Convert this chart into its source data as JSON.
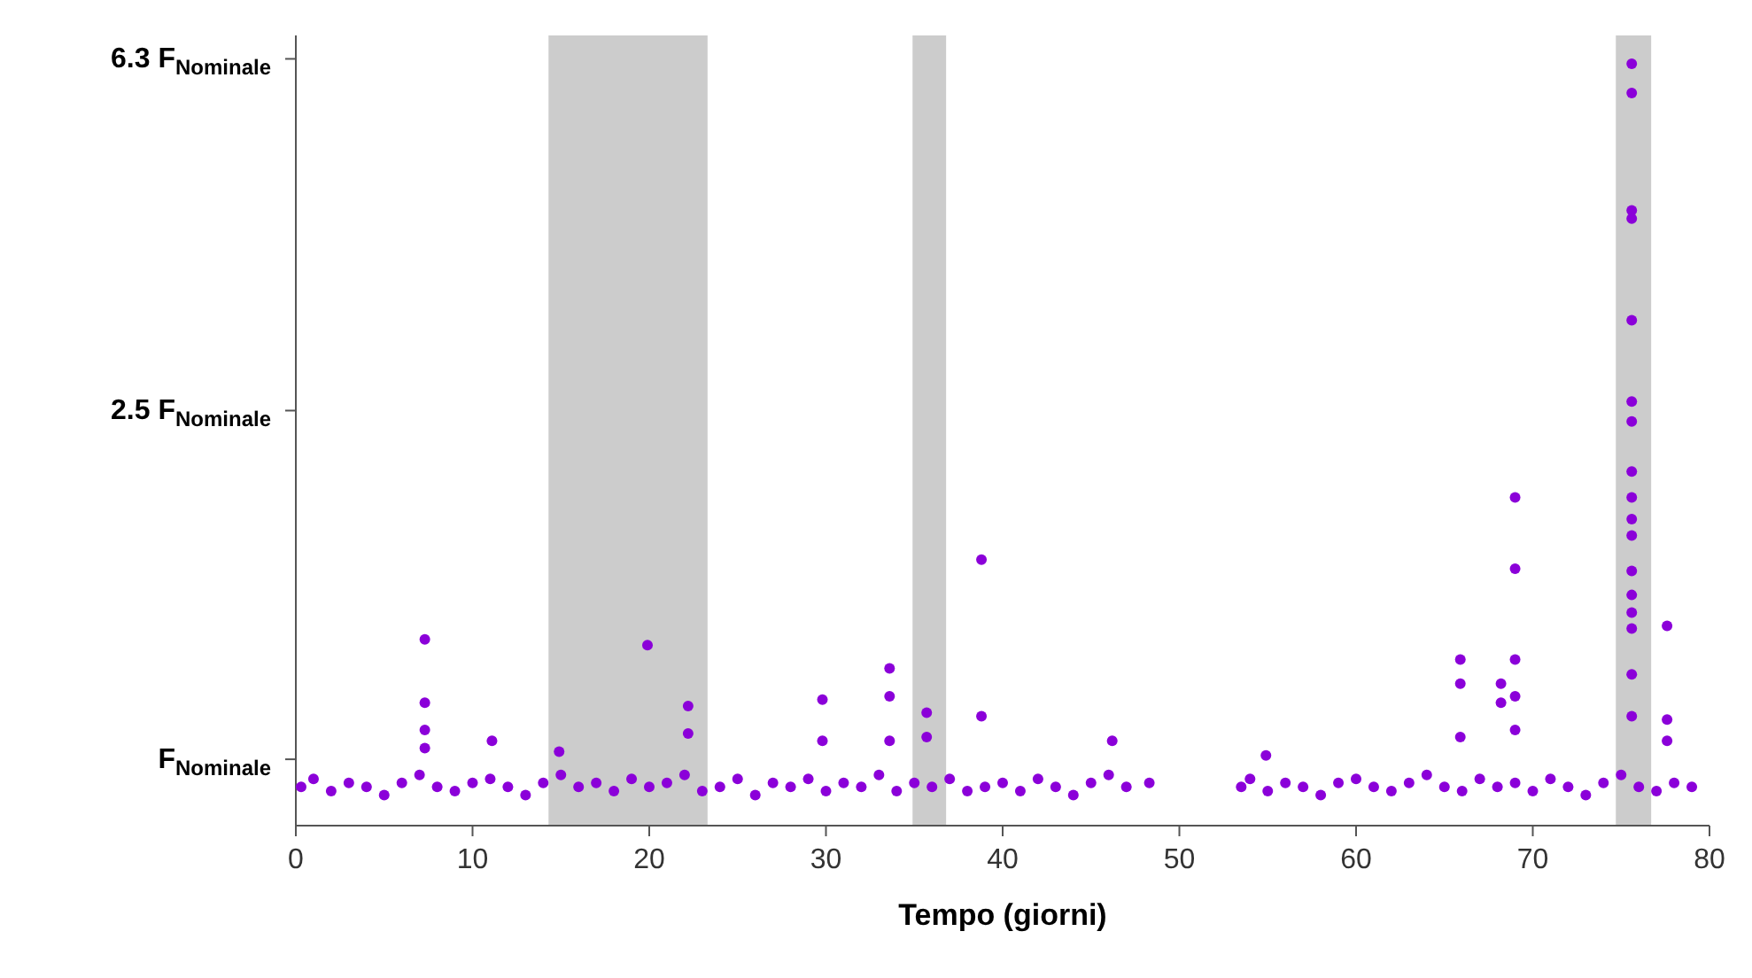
{
  "chart_data": {
    "type": "scatter",
    "xlabel": "Tempo (giorni)",
    "xlim": [
      0,
      80
    ],
    "xticks": [
      0,
      10,
      20,
      30,
      40,
      50,
      60,
      70,
      80
    ],
    "ylim": [
      0.84,
      6.7
    ],
    "yticks": [
      {
        "value": 1,
        "label": "F$_{Nominale}$"
      },
      {
        "value": 2.5,
        "label": "2.5 F$_{Nominale}$"
      },
      {
        "value": 6.3,
        "label": "6.3 F$_{Nominale}$"
      }
    ],
    "log": "y",
    "grid": false,
    "legend": false,
    "marker": "circle",
    "bands": [
      {
        "axis": "x",
        "from": 14.3,
        "to": 23.3,
        "color": "#cccccc"
      },
      {
        "axis": "x",
        "from": 34.9,
        "to": 36.8,
        "color": "#cccccc"
      },
      {
        "axis": "x",
        "from": 74.7,
        "to": 76.7,
        "color": "#cccccc"
      }
    ],
    "series": [
      {
        "color": "#8b00d9",
        "x": [
          0.3,
          1,
          2,
          3,
          4,
          5,
          6,
          7,
          8,
          9,
          10,
          11,
          12,
          13,
          14,
          15,
          16,
          17,
          18,
          19,
          20,
          21,
          22,
          23,
          24,
          25,
          26,
          27,
          28,
          29,
          30,
          31,
          32,
          33,
          34,
          35,
          36,
          37,
          38,
          39,
          40,
          41,
          42,
          43,
          44,
          45,
          46,
          47,
          48.3,
          53.5,
          54,
          55,
          56,
          57,
          58,
          59,
          60,
          61,
          62,
          63,
          64,
          65,
          66,
          67,
          68,
          69,
          70,
          71,
          72,
          73,
          74,
          75,
          76,
          77,
          78,
          79,
          7.3,
          7.3,
          7.3,
          7.3,
          11.1,
          14.9,
          19.9,
          22.2,
          22.2,
          29.8,
          29.8,
          33.6,
          33.6,
          33.6,
          35.7,
          35.7,
          38.8,
          38.8,
          46.2,
          54.9,
          65.9,
          65.9,
          65.9,
          68.2,
          68.2,
          69,
          69,
          69,
          69,
          69,
          75.6,
          75.6,
          75.6,
          75.6,
          75.6,
          75.6,
          75.6,
          75.6,
          75.6,
          75.6,
          75.6,
          75.6,
          75.6,
          75.6,
          75.6,
          75.6,
          75.6,
          77.6,
          77.6,
          77.6
        ],
        "values": [
          0.93,
          0.95,
          0.92,
          0.94,
          0.93,
          0.91,
          0.94,
          0.96,
          0.93,
          0.92,
          0.94,
          0.95,
          0.93,
          0.91,
          0.94,
          0.96,
          0.93,
          0.94,
          0.92,
          0.95,
          0.93,
          0.94,
          0.96,
          0.92,
          0.93,
          0.95,
          0.91,
          0.94,
          0.93,
          0.95,
          0.92,
          0.94,
          0.93,
          0.96,
          0.92,
          0.94,
          0.93,
          0.95,
          0.92,
          0.93,
          0.94,
          0.92,
          0.95,
          0.93,
          0.91,
          0.94,
          0.96,
          0.93,
          0.94,
          0.93,
          0.95,
          0.92,
          0.94,
          0.93,
          0.91,
          0.94,
          0.95,
          0.93,
          0.92,
          0.94,
          0.96,
          0.93,
          0.92,
          0.95,
          0.93,
          0.94,
          0.92,
          0.95,
          0.93,
          0.91,
          0.94,
          0.96,
          0.93,
          0.92,
          0.94,
          0.93,
          1.37,
          1.16,
          1.08,
          1.03,
          1.05,
          1.02,
          1.35,
          1.15,
          1.07,
          1.17,
          1.05,
          1.27,
          1.18,
          1.05,
          1.13,
          1.06,
          1.69,
          1.12,
          1.05,
          1.01,
          1.3,
          1.22,
          1.06,
          1.22,
          1.16,
          1.99,
          1.65,
          1.3,
          1.18,
          1.08,
          6.22,
          5.76,
          4.23,
          4.14,
          3.17,
          2.56,
          2.43,
          2.13,
          1.99,
          1.88,
          1.8,
          1.64,
          1.54,
          1.47,
          1.41,
          1.25,
          1.12,
          1.42,
          1.11,
          1.05
        ]
      }
    ]
  }
}
